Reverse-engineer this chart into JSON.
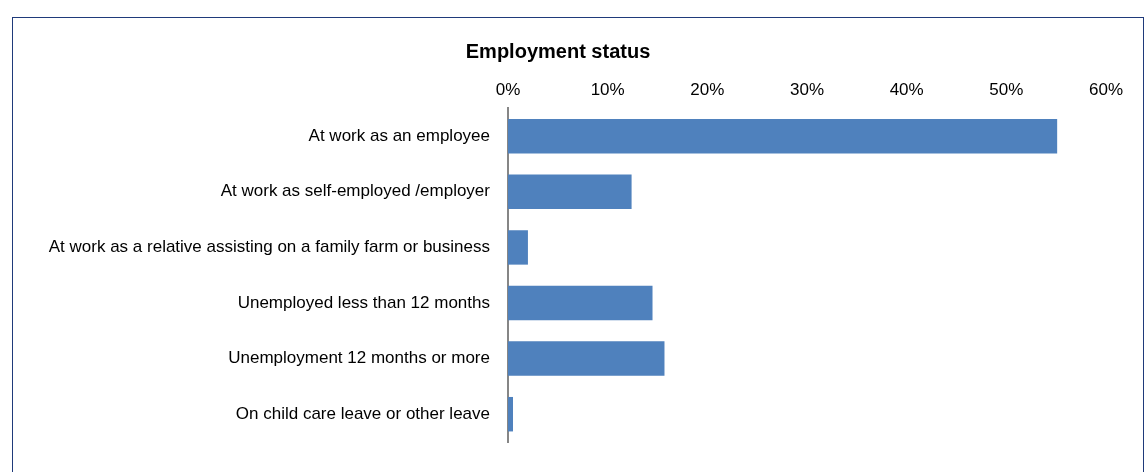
{
  "chart_data": {
    "type": "bar",
    "orientation": "horizontal",
    "title": "Employment status",
    "categories": [
      "At work as an employee",
      "At work as self-employed /employer",
      "At work as a relative assisting on a family farm or business",
      "Unemployed less than 12 months",
      "Unemployment 12 months or more",
      "On child care leave or other leave"
    ],
    "values": [
      55.1,
      12.4,
      2.0,
      14.5,
      15.7,
      0.5
    ],
    "color": "#4f81bd",
    "xlim": [
      0,
      60
    ],
    "xticks": [
      {
        "value": 0,
        "label": "0%"
      },
      {
        "value": 10,
        "label": "10%"
      },
      {
        "value": 20,
        "label": "20%"
      },
      {
        "value": 30,
        "label": "30%"
      },
      {
        "value": 40,
        "label": "40%"
      },
      {
        "value": 50,
        "label": "50%"
      },
      {
        "value": 60,
        "label": "60%"
      }
    ],
    "grid": false,
    "legend": false
  }
}
